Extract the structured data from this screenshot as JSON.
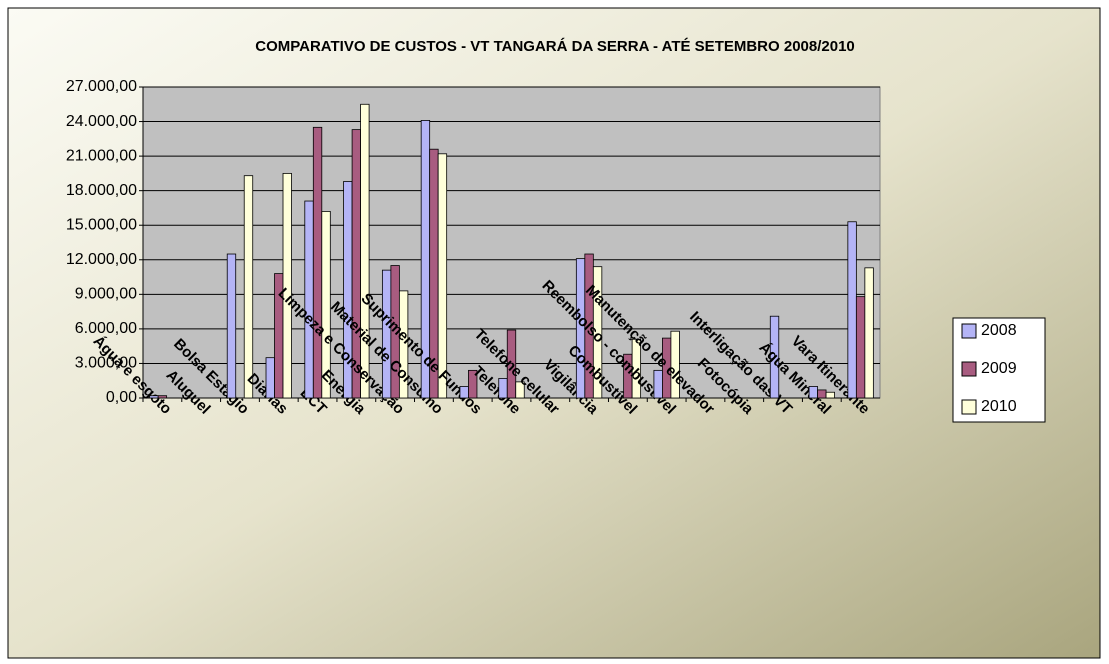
{
  "chart_data": {
    "type": "bar",
    "title": "COMPARATIVO DE CUSTOS - VT TANGARÁ DA SERRA - ATÉ SETEMBRO 2008/2010",
    "categories": [
      "Água e esgoto",
      "Aluguel",
      "Bolsa Estágio",
      "Diárias",
      "ECT",
      "Energia",
      "Limpeza e Conservação",
      "Material de Consumo",
      "Suprimento de Fundos",
      "Telefone",
      "Telefone celular",
      "Vigilância",
      "Combustível",
      "Reembolso - combustível",
      "Manutenção de elevador",
      "Fotocópia",
      "Interligação das VT",
      "Água Mineral",
      "Vara Itinerante"
    ],
    "series": [
      {
        "name": "2008",
        "color": "#b4b4f6",
        "values": [
          200,
          null,
          12500,
          3500,
          17100,
          18800,
          11100,
          24100,
          1000,
          1700,
          null,
          12100,
          null,
          2400,
          null,
          null,
          7100,
          1000,
          15300
        ]
      },
      {
        "name": "2009",
        "color": "#a85c80",
        "values": [
          200,
          null,
          null,
          10800,
          23500,
          23300,
          11500,
          21600,
          2400,
          5900,
          null,
          12500,
          3800,
          5200,
          null,
          null,
          null,
          700,
          8800
        ]
      },
      {
        "name": "2010",
        "color": "#ffffda",
        "values": [
          null,
          null,
          19300,
          19500,
          16200,
          25500,
          9300,
          21200,
          null,
          1400,
          null,
          11400,
          5100,
          5800,
          null,
          null,
          null,
          500,
          11300
        ]
      }
    ],
    "ylim": [
      0,
      27000
    ],
    "yticks": [
      {
        "value": 0,
        "label": "0,00"
      },
      {
        "value": 3000,
        "label": "3.000,00"
      },
      {
        "value": 6000,
        "label": "6.000,00"
      },
      {
        "value": 9000,
        "label": "9.000,00"
      },
      {
        "value": 12000,
        "label": "12.000,00"
      },
      {
        "value": 15000,
        "label": "15.000,00"
      },
      {
        "value": 18000,
        "label": "18.000,00"
      },
      {
        "value": 21000,
        "label": "21.000,00"
      },
      {
        "value": 24000,
        "label": "24.000,00"
      },
      {
        "value": 27000,
        "label": "27.000,00"
      }
    ],
    "grid": true,
    "legend": "right"
  }
}
